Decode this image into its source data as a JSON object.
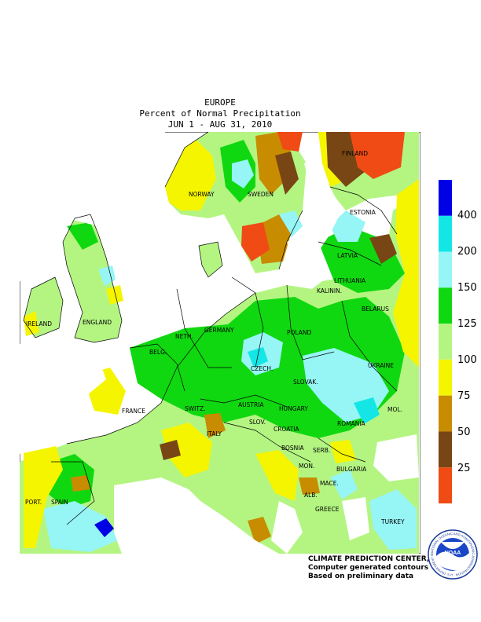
{
  "header": {
    "region": "EUROPE",
    "title": "Percent of Normal Precipitation",
    "period": "JUN  1 - AUG 31, 2010"
  },
  "legend": {
    "ticks": [
      "400",
      "200",
      "150",
      "125",
      "100",
      "75",
      "50",
      "25"
    ],
    "bins": [
      {
        "color": "#0000e6"
      },
      {
        "color": "#14e6e6"
      },
      {
        "color": "#96f5f5"
      },
      {
        "color": "#10d810"
      },
      {
        "color": "#b4f582"
      },
      {
        "color": "#f5f500"
      },
      {
        "color": "#c88c00"
      },
      {
        "color": "#784614"
      },
      {
        "color": "#f04b14"
      }
    ]
  },
  "map_labels": {
    "finland": "FINLAND",
    "norway": "NORWAY",
    "sweden": "SWEDEN",
    "estonia": "ESTONIA",
    "latvia": "LATVIA",
    "lithuania": "LITHUANIA",
    "kaliningrad": "KALININ.",
    "belarus": "BELARUS",
    "ireland": "IRELAND",
    "england": "ENGLAND",
    "neth": "NETH.",
    "germany": "GERMANY",
    "poland": "POLAND",
    "belg": "BELG.",
    "czech": "CZECH.",
    "ukraine": "UKRAINE",
    "slovak": "SLOVAK.",
    "france": "FRANCE",
    "switz": "SWITZ.",
    "austria": "AUSTRIA",
    "hungary": "HUNGARY",
    "mol": "MOL.",
    "slov": "SLOV.",
    "croatia": "CROATIA",
    "romania": "ROMANIA",
    "italy": "ITALY",
    "bosnia": "BOSNIA",
    "serb": "SERB.",
    "mon": "MON.",
    "bulgaria": "BULGARIA",
    "port": "PORT.",
    "spain": "SPAIN",
    "mace": "MACE.",
    "alb": "ALB.",
    "greece": "GREECE",
    "turkey": "TURKEY"
  },
  "credits": {
    "line1": "CLIMATE PREDICTION CENTER, NOAA",
    "line2": "Computer generated contours",
    "line3": "Based on preliminary data"
  },
  "logo": {
    "center_text": "NOAA",
    "ring_text": "NATIONAL OCEANIC AND ATMOSPHERIC ADMINISTRATION · U.S. DEPARTMENT OF COMMERCE"
  }
}
